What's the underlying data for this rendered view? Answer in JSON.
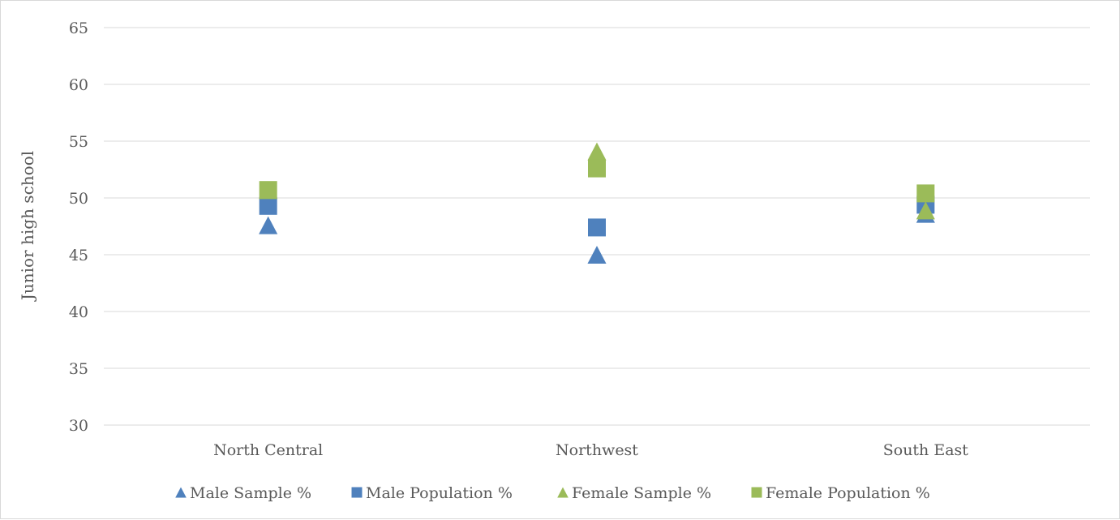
{
  "chart_data": {
    "type": "scatter",
    "title": "",
    "xlabel": "",
    "ylabel": "Junior high school",
    "categories": [
      "North Central",
      "Northwest",
      "South East"
    ],
    "ylim": [
      30,
      65
    ],
    "yticks": [
      30,
      35,
      40,
      45,
      50,
      55,
      60,
      65
    ],
    "grid": true,
    "legend_position": "bottom",
    "series": [
      {
        "name": "Male Sample %",
        "marker": "triangle",
        "color": "#4f81bd",
        "values": [
          47.6,
          45.0,
          48.6
        ]
      },
      {
        "name": "Male Population %",
        "marker": "square",
        "color": "#4f81bd",
        "values": [
          49.3,
          47.4,
          49.4
        ]
      },
      {
        "name": "Female Sample %",
        "marker": "triangle",
        "color": "#9bbb59",
        "values": [
          50.7,
          54.1,
          48.9
        ]
      },
      {
        "name": "Female Population %",
        "marker": "square",
        "color": "#9bbb59",
        "values": [
          50.7,
          52.6,
          50.4
        ]
      }
    ]
  }
}
